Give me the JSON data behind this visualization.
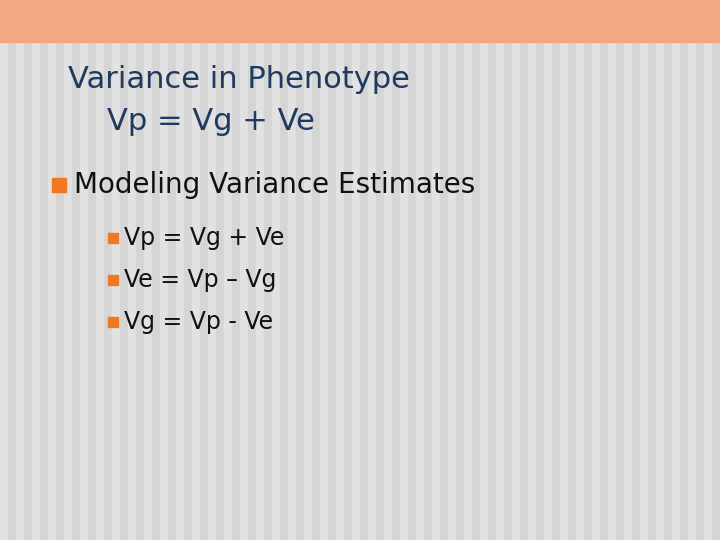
{
  "title_line1": "Variance in Phenotype",
  "title_line2": "    Vp = Vg + Ve",
  "title_color": "#1e3a5f",
  "background_color_light": "#e8e8e8",
  "background_color_dark": "#d8d8d8",
  "header_color": "#f2a882",
  "bullet_color": "#f07820",
  "bullet1_text": "Modeling Variance Estimates",
  "bullet1_color": "#111111",
  "sub_bullets": [
    "Vp = Vg + Ve",
    "Ve = Vp – Vg",
    "Vg = Vp - Ve"
  ],
  "sub_bullet_color": "#111111",
  "figsize": [
    7.2,
    5.4
  ],
  "dpi": 100
}
